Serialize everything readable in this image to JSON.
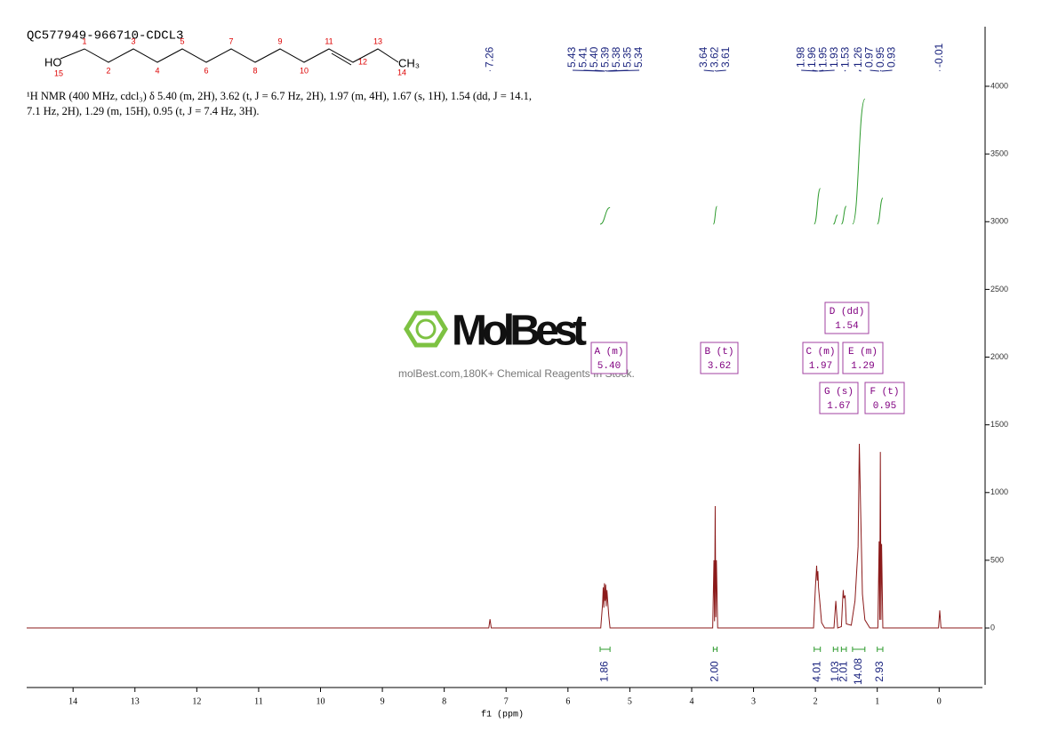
{
  "chart_data": {
    "type": "spectrum",
    "title": "QC577949-966710-CDCL3",
    "description": "¹H NMR (400 MHz, cdcl₃) δ 5.40 (m, 2H), 3.62 (t, J = 6.7 Hz, 2H), 1.97 (m, 4H), 1.67 (s, 1H), 1.54 (dd, J = 14.1, 7.1 Hz, 2H), 1.29 (m, 15H), 0.95 (t, J = 7.4 Hz, 3H).",
    "xlabel": "f1 (ppm)",
    "xlim": [
      14.75,
      -0.7
    ],
    "xticks": [
      14,
      13,
      12,
      11,
      10,
      9,
      8,
      7,
      6,
      5,
      4,
      3,
      2,
      1,
      0
    ],
    "ylim": [
      -420,
      4440
    ],
    "yticks": [
      0,
      500,
      1000,
      1500,
      2000,
      2500,
      3000,
      3500,
      4000
    ],
    "color": "#8b1a1a",
    "spectrum": {
      "x": [
        14.75,
        7.28,
        7.26,
        7.24,
        5.47,
        5.44,
        5.43,
        5.42,
        5.41,
        5.4,
        5.39,
        5.38,
        5.37,
        5.35,
        5.34,
        5.32,
        3.66,
        3.64,
        3.63,
        3.62,
        3.61,
        3.6,
        3.58,
        2.03,
        2.0,
        1.99,
        1.98,
        1.97,
        1.96,
        1.95,
        1.93,
        1.9,
        1.85,
        1.7,
        1.67,
        1.64,
        1.58,
        1.56,
        1.55,
        1.54,
        1.52,
        1.5,
        1.42,
        1.36,
        1.33,
        1.31,
        1.29,
        1.27,
        1.24,
        1.2,
        1.12,
        0.99,
        0.97,
        0.96,
        0.95,
        0.94,
        0.93,
        0.91,
        0.01,
        -0.01,
        -0.03,
        -0.7
      ],
      "y": [
        0,
        0,
        65,
        0,
        0,
        180,
        300,
        150,
        330,
        200,
        320,
        160,
        280,
        150,
        90,
        0,
        0,
        500,
        50,
        900,
        80,
        500,
        0,
        0,
        300,
        380,
        460,
        350,
        420,
        300,
        200,
        40,
        0,
        0,
        200,
        0,
        10,
        200,
        280,
        220,
        240,
        30,
        20,
        200,
        440,
        600,
        1360,
        900,
        250,
        60,
        0,
        0,
        640,
        60,
        1300,
        60,
        620,
        0,
        0,
        130,
        0,
        0
      ]
    },
    "peak_picks": [
      7.26,
      5.43,
      5.41,
      5.4,
      5.39,
      5.38,
      5.35,
      5.34,
      3.64,
      3.62,
      3.61,
      1.98,
      1.96,
      1.95,
      1.93,
      1.53,
      1.26,
      0.97,
      0.95,
      0.93,
      -0.01
    ],
    "peak_pick_labels": [
      "7.26",
      "5.43",
      "5.41",
      "5.40",
      "5.39",
      "5.38",
      "5.35",
      "5.34",
      "3.64",
      "3.62",
      "3.61",
      "1.98",
      "1.96",
      "1.95",
      "1.93",
      "1.53",
      "1.26",
      "0.97",
      "0.95",
      "0.93",
      "-0.01"
    ],
    "integrals": {
      "ranges": [
        [
          5.48,
          5.32
        ],
        [
          3.65,
          3.59
        ],
        [
          2.02,
          1.92
        ],
        [
          1.71,
          1.64
        ],
        [
          1.58,
          1.5
        ],
        [
          1.4,
          1.2
        ],
        [
          1.0,
          0.91
        ]
      ],
      "values": [
        1.86,
        2.0,
        4.01,
        1.03,
        2.01,
        14.08,
        2.93
      ],
      "value_labels": [
        "1.86",
        "2.00",
        "4.01",
        "1.03",
        "2.01",
        "14.08",
        "2.93"
      ],
      "color": "#2e9b2e"
    },
    "multiplets": [
      {
        "name": "A (m)",
        "shift": 5.4,
        "shift_label": "5.40"
      },
      {
        "name": "B (t)",
        "shift": 3.62,
        "shift_label": "3.62"
      },
      {
        "name": "C (m)",
        "shift": 1.97,
        "shift_label": "1.97"
      },
      {
        "name": "D (dd)",
        "shift": 1.54,
        "shift_label": "1.54"
      },
      {
        "name": "E (m)",
        "shift": 1.29,
        "shift_label": "1.29"
      },
      {
        "name": "G (s)",
        "shift": 1.67,
        "shift_label": "1.67"
      },
      {
        "name": "F (t)",
        "shift": 0.95,
        "shift_label": "0.95"
      }
    ],
    "molecule": {
      "hydroxyl": "HO",
      "methyl": "CH₃",
      "atom_labels": [
        "1",
        "2",
        "3",
        "4",
        "5",
        "6",
        "7",
        "8",
        "9",
        "10",
        "11",
        "12",
        "13",
        "14",
        "15"
      ]
    },
    "watermark": {
      "brand": "MolBest",
      "tagline": "molBest.com,180K+ Chemical Reagents In Stock."
    }
  }
}
